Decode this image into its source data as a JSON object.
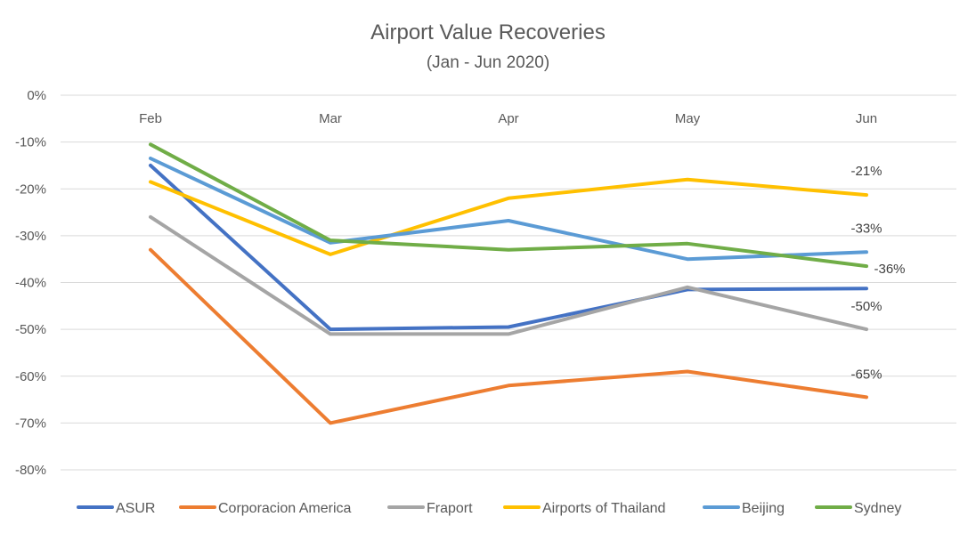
{
  "chart_data": {
    "type": "line",
    "title": "Airport Value Recoveries",
    "subtitle": "(Jan - Jun 2020)",
    "categories": [
      "Feb",
      "Mar",
      "Apr",
      "May",
      "Jun"
    ],
    "ylim": [
      -80,
      0
    ],
    "yticks": [
      0,
      -10,
      -20,
      -30,
      -40,
      -50,
      -60,
      -70,
      -80
    ],
    "ytick_labels": [
      "0%",
      "-10%",
      "-20%",
      "-30%",
      "-40%",
      "-50%",
      "-60%",
      "-70%",
      "-80%"
    ],
    "grid": true,
    "legend_position": "bottom",
    "series": [
      {
        "name": "ASUR",
        "color": "#4472C4",
        "values": [
          -15,
          -50,
          -49.5,
          -41.5,
          -41.3
        ]
      },
      {
        "name": "Corporacion America",
        "color": "#ED7D31",
        "values": [
          -33,
          -70,
          -62,
          -59,
          -64.5
        ]
      },
      {
        "name": "Fraport",
        "color": "#A5A5A5",
        "values": [
          -26,
          -51,
          -51,
          -41,
          -50
        ]
      },
      {
        "name": "Airports of Thailand",
        "color": "#FFC000",
        "values": [
          -18.5,
          -34,
          -22,
          -18,
          -21.3
        ]
      },
      {
        "name": "Beijing",
        "color": "#5B9BD5",
        "values": [
          -13.5,
          -31.5,
          -26.8,
          -35,
          -33.5
        ]
      },
      {
        "name": "Sydney",
        "color": "#70AD47",
        "values": [
          -10.5,
          -31,
          -33,
          -31.7,
          -36.5
        ]
      }
    ],
    "data_labels": [
      {
        "text": "-21%",
        "series": "Airports of Thailand"
      },
      {
        "text": "-33%",
        "series": "Beijing"
      },
      {
        "text": "-36%",
        "series": "Sydney"
      },
      {
        "text": "-50%",
        "series": "Fraport"
      },
      {
        "text": "-65%",
        "series": "Corporacion America"
      }
    ]
  }
}
